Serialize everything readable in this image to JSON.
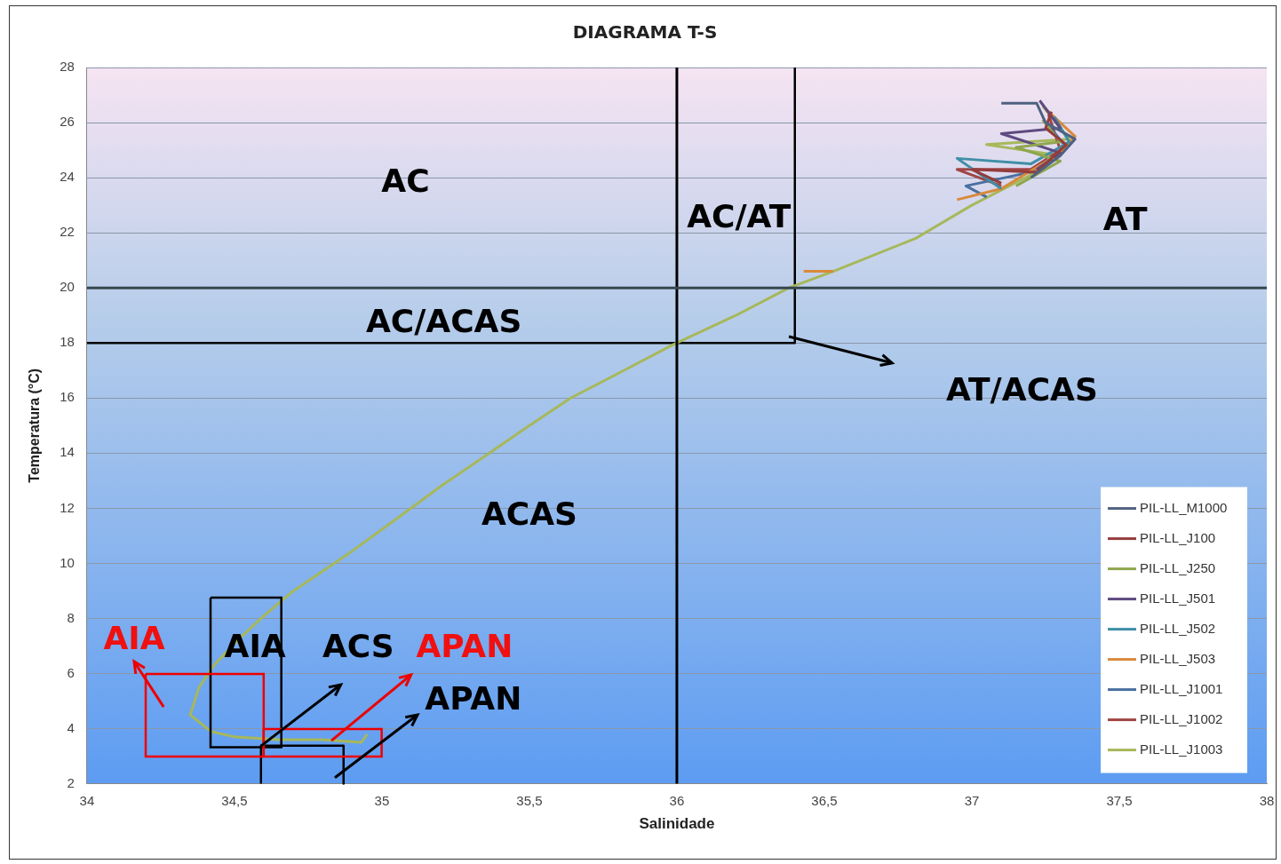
{
  "chart_data": {
    "type": "line",
    "title": "DIAGRAMA T-S",
    "xlabel": "Salinidade",
    "ylabel": "Temperatura (°C)",
    "xlim": [
      34,
      38
    ],
    "xticks": [
      34,
      {
        "value": 34.5,
        "label": "34,5"
      },
      35,
      {
        "value": 35.5,
        "label": "35,5"
      },
      36,
      {
        "value": 36.5,
        "label": "36,5"
      },
      37,
      {
        "value": 37.5,
        "label": "37,5"
      },
      38
    ],
    "ylim": [
      2,
      28
    ],
    "yticks": [
      2,
      4,
      6,
      8,
      10,
      12,
      14,
      16,
      18,
      20,
      22,
      24,
      26,
      28
    ],
    "grid": "y",
    "legend": "bottom right",
    "series": [
      {
        "name": "PIL-LL_M1000",
        "color": "#4f6180",
        "x": [
          37.2,
          37.3,
          37.35,
          37.25,
          37.22,
          37.1
        ],
        "values": [
          24.0,
          24.8,
          25.4,
          26.0,
          26.7,
          26.7
        ]
      },
      {
        "name": "PIL-LL_J100",
        "color": "#943c3c",
        "x": [
          37.1,
          37.0,
          37.22,
          37.32,
          37.25,
          37.27
        ],
        "values": [
          23.8,
          24.3,
          24.2,
          25.2,
          25.8,
          26.4
        ]
      },
      {
        "name": "PIL-LL_J250",
        "color": "#8fa64e",
        "x": [
          37.15,
          37.3,
          37.15,
          37.3,
          37.24
        ],
        "values": [
          23.7,
          24.6,
          25.1,
          25.3,
          26.1
        ]
      },
      {
        "name": "PIL-LL_J501",
        "color": "#5e4a80",
        "x": [
          37.22,
          37.3,
          37.1,
          37.3,
          37.23
        ],
        "values": [
          24.3,
          24.9,
          25.6,
          25.8,
          26.8
        ]
      },
      {
        "name": "PIL-LL_J502",
        "color": "#3f8fa6",
        "x": [
          37.1,
          36.95,
          37.2,
          37.33,
          37.28
        ],
        "values": [
          23.6,
          24.7,
          24.5,
          25.3,
          26.2
        ]
      },
      {
        "name": "PIL-LL_J503",
        "color": "#d98a3a",
        "x": [
          36.43,
          36.53,
          36.7,
          36.95,
          37.1,
          37.3,
          37.35,
          37.25
        ],
        "values": [
          20.6,
          20.6,
          null,
          23.2,
          23.6,
          24.9,
          25.5,
          26.5
        ]
      },
      {
        "name": "PIL-LL_J1001",
        "color": "#4a6fa0",
        "x": [
          37.05,
          36.98,
          37.2,
          37.32,
          37.26
        ],
        "values": [
          23.3,
          23.7,
          24.2,
          25.1,
          25.9
        ]
      },
      {
        "name": "PIL-LL_J1002",
        "color": "#a04545",
        "x": [
          37.1,
          36.95,
          37.2,
          37.3,
          37.26
        ],
        "values": [
          23.7,
          24.3,
          24.3,
          25.0,
          26.3
        ]
      },
      {
        "name": "PIL-LL_J1003",
        "color": "#a6b85a",
        "x": [
          34.95,
          34.93,
          34.8,
          34.65,
          34.5,
          34.42,
          34.35,
          34.38,
          34.43,
          34.52,
          34.6,
          34.7,
          34.88,
          35.06,
          35.2,
          35.35,
          35.5,
          35.64,
          35.82,
          35.98,
          36.2,
          36.38,
          36.53,
          36.81,
          37.0,
          37.2,
          37.3,
          37.05,
          37.33,
          37.24
        ],
        "values": [
          3.8,
          3.5,
          3.6,
          3.6,
          3.7,
          3.9,
          4.5,
          5.5,
          6.3,
          7.3,
          8.1,
          9.0,
          10.3,
          11.7,
          12.8,
          13.9,
          15.0,
          16.0,
          17.0,
          17.9,
          19.0,
          20.0,
          20.6,
          21.8,
          23.0,
          24.1,
          24.8,
          25.2,
          25.4,
          26.6
        ]
      },
      {
        "type": "line",
        "color": "#000000",
        "x": [
          34,
          36.4,
          36.4
        ],
        "values": [
          18,
          18,
          28
        ]
      },
      {
        "type": "line",
        "color": "#000000",
        "x": [
          34.59,
          34.59,
          34.87,
          34.87
        ],
        "values": [
          2,
          3.38,
          3.38,
          2
        ]
      }
    ],
    "ref_lines": [
      {
        "axis": "x",
        "value": 36,
        "color": "#000000"
      },
      {
        "axis": "y",
        "value": 20,
        "color": "#37474f"
      }
    ],
    "annotations": [
      "AC",
      "AC/AT",
      "AT",
      "AC/ACAS",
      "AT/ACAS",
      "ACAS",
      "AIA",
      "AIA",
      {
        "text": "ACS",
        "x": 34.59,
        "y": 3.38
      },
      {
        "text": "APAN",
        "x": 34.83,
        "y": 3.55
      },
      "APAN"
    ]
  }
}
